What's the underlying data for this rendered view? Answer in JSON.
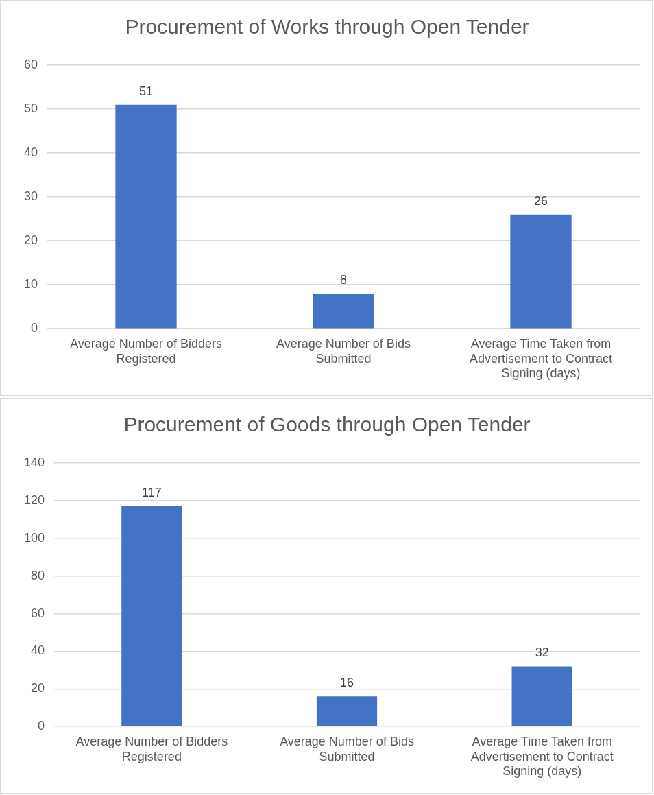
{
  "chart_data": [
    {
      "type": "bar",
      "title": "Procurement of Works through Open Tender",
      "categories": [
        "Average Number of Bidders Registered",
        "Average Number of Bids Submitted",
        "Average Time Taken from Advertisement to Contract Signing (days)"
      ],
      "values": [
        51,
        8,
        26
      ],
      "color": "#4472c4",
      "ylim": [
        0,
        60
      ],
      "yticks": [
        0,
        10,
        20,
        30,
        40,
        50,
        60
      ],
      "grid": "y",
      "data_labels": true
    },
    {
      "type": "bar",
      "title": "Procurement of Goods through Open Tender",
      "categories": [
        "Average Number of Bidders Registered",
        "Average Number of Bids Submitted",
        "Average Time Taken from Advertisement to Contract Signing (days)"
      ],
      "values": [
        117,
        16,
        32
      ],
      "color": "#4472c4",
      "ylim": [
        0,
        140
      ],
      "yticks": [
        0,
        20,
        40,
        60,
        80,
        100,
        120,
        140
      ],
      "grid": "y",
      "data_labels": true
    }
  ]
}
